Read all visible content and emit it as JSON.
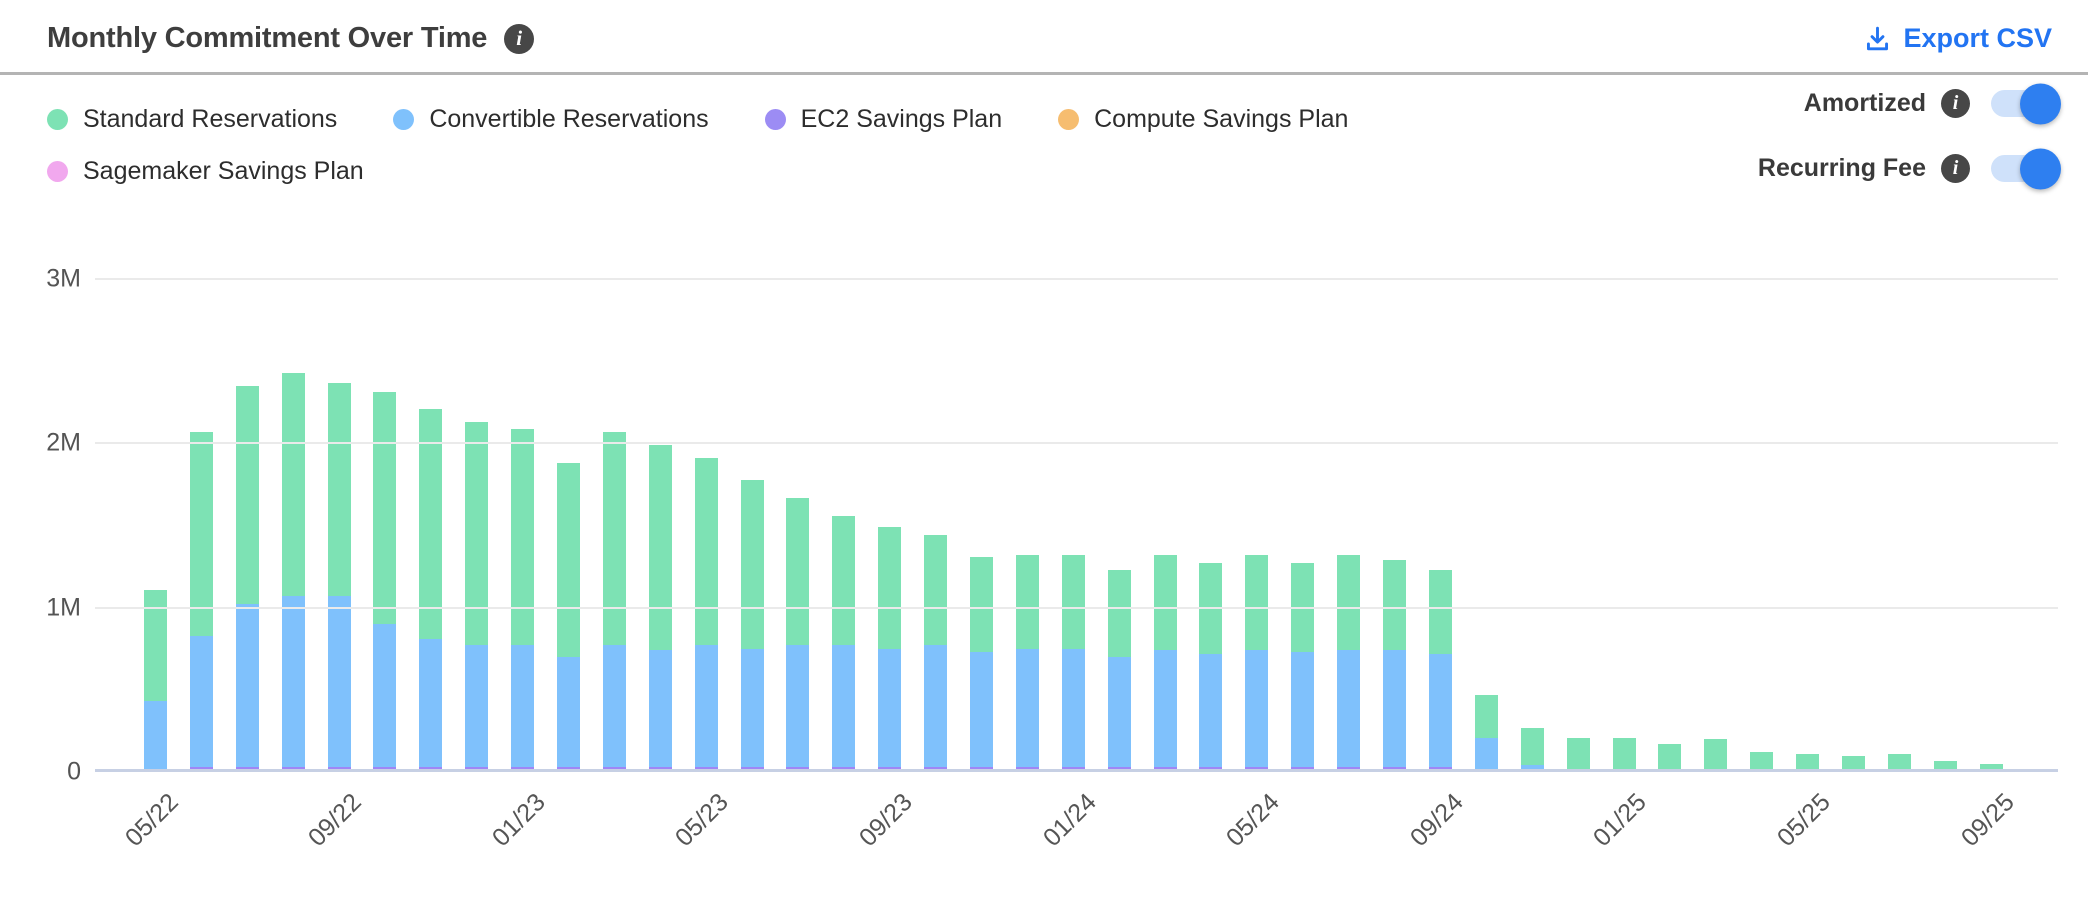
{
  "header": {
    "title": "Monthly Commitment Over Time",
    "title_info_icon": "info-icon",
    "export_label": "Export CSV"
  },
  "legend": [
    {
      "label": "Standard Reservations",
      "color": "#7de2b4"
    },
    {
      "label": "Convertible Reservations",
      "color": "#7fc1fc"
    },
    {
      "label": "EC2 Savings Plan",
      "color": "#9c8cf4"
    },
    {
      "label": "Compute Savings Plan",
      "color": "#f6bd70"
    },
    {
      "label": "Sagemaker Savings Plan",
      "color": "#f1a8ee"
    }
  ],
  "toggles": [
    {
      "label": "Amortized",
      "state": "on"
    },
    {
      "label": "Recurring Fee",
      "state": "on"
    }
  ],
  "colors": {
    "accent_blue": "#2274f2",
    "toggle_track": "#cfe1fa",
    "toggle_knob": "#2e7ff0",
    "info_badge": "#474747",
    "gridline": "#eaeaea",
    "axis_baseline": "#c7d0e4",
    "divider": "#b4b4b4"
  },
  "chart_data": {
    "type": "bar",
    "stacked": true,
    "unit": "millions",
    "ylim": [
      0,
      3000000
    ],
    "y_tick_labels": [
      "0",
      "1M",
      "2M",
      "3M"
    ],
    "grid": true,
    "x_tick_every": 4,
    "x": [
      "05/22",
      "06/22",
      "07/22",
      "08/22",
      "09/22",
      "10/22",
      "11/22",
      "12/22",
      "01/23",
      "02/23",
      "03/23",
      "04/23",
      "05/23",
      "06/23",
      "07/23",
      "08/23",
      "09/23",
      "10/23",
      "11/23",
      "12/23",
      "01/24",
      "02/24",
      "03/24",
      "04/24",
      "05/24",
      "06/24",
      "07/24",
      "08/24",
      "09/24",
      "10/24",
      "11/24",
      "12/24",
      "01/25",
      "02/25",
      "03/25",
      "04/25",
      "05/25",
      "06/25",
      "07/25",
      "08/25",
      "09/25",
      "10/25"
    ],
    "x_tick_labels_shown": [
      "05/22",
      "09/22",
      "01/23",
      "05/23",
      "09/23",
      "01/24",
      "05/24",
      "09/24",
      "01/25",
      "05/25",
      "09/25"
    ],
    "stack_order_bottom_to_top": [
      "Sagemaker Savings Plan",
      "Compute Savings Plan",
      "EC2 Savings Plan",
      "Convertible Reservations",
      "Standard Reservations"
    ],
    "series": [
      {
        "name": "Standard Reservations",
        "color": "#7de2b4",
        "values": [
          0.68,
          1.24,
          1.33,
          1.36,
          1.3,
          1.41,
          1.4,
          1.36,
          1.32,
          1.18,
          1.3,
          1.25,
          1.14,
          1.03,
          0.9,
          0.79,
          0.74,
          0.67,
          0.58,
          0.57,
          0.57,
          0.53,
          0.58,
          0.55,
          0.58,
          0.54,
          0.58,
          0.55,
          0.51,
          0.26,
          0.23,
          0.21,
          0.21,
          0.17,
          0.2,
          0.12,
          0.11,
          0.1,
          0.11,
          0.07,
          0.05,
          0.02
        ]
      },
      {
        "name": "Convertible Reservations",
        "color": "#7fc1fc",
        "values": [
          0.41,
          0.8,
          0.99,
          1.04,
          1.04,
          0.87,
          0.78,
          0.74,
          0.74,
          0.67,
          0.74,
          0.71,
          0.74,
          0.72,
          0.74,
          0.74,
          0.72,
          0.74,
          0.7,
          0.72,
          0.72,
          0.67,
          0.71,
          0.69,
          0.71,
          0.7,
          0.71,
          0.71,
          0.69,
          0.2,
          0.04,
          0,
          0,
          0,
          0,
          0,
          0,
          0,
          0,
          0,
          0,
          0
        ]
      },
      {
        "name": "EC2 Savings Plan",
        "color": "#9f86f6",
        "values": [
          0.02,
          0.03,
          0.03,
          0.03,
          0.03,
          0.03,
          0.03,
          0.03,
          0.03,
          0.03,
          0.03,
          0.03,
          0.03,
          0.03,
          0.03,
          0.03,
          0.03,
          0.03,
          0.03,
          0.03,
          0.03,
          0.03,
          0.03,
          0.03,
          0.03,
          0.03,
          0.03,
          0.03,
          0.03,
          0.01,
          0,
          0,
          0,
          0,
          0,
          0,
          0,
          0,
          0,
          0,
          0,
          0
        ]
      },
      {
        "name": "Compute Savings Plan",
        "color": "#f6bd70",
        "values": [
          0,
          0,
          0,
          0,
          0,
          0,
          0,
          0,
          0,
          0,
          0,
          0,
          0,
          0,
          0,
          0,
          0,
          0,
          0,
          0,
          0,
          0,
          0,
          0,
          0,
          0,
          0,
          0,
          0,
          0,
          0,
          0,
          0,
          0,
          0,
          0,
          0,
          0,
          0,
          0,
          0,
          0
        ]
      },
      {
        "name": "Sagemaker Savings Plan",
        "color": "#f1a8ee",
        "values": [
          0,
          0,
          0,
          0,
          0,
          0,
          0,
          0,
          0,
          0,
          0,
          0,
          0,
          0,
          0,
          0,
          0,
          0,
          0,
          0,
          0,
          0,
          0,
          0,
          0,
          0,
          0,
          0,
          0,
          0,
          0,
          0,
          0,
          0,
          0,
          0,
          0,
          0,
          0,
          0,
          0,
          0
        ]
      }
    ]
  }
}
